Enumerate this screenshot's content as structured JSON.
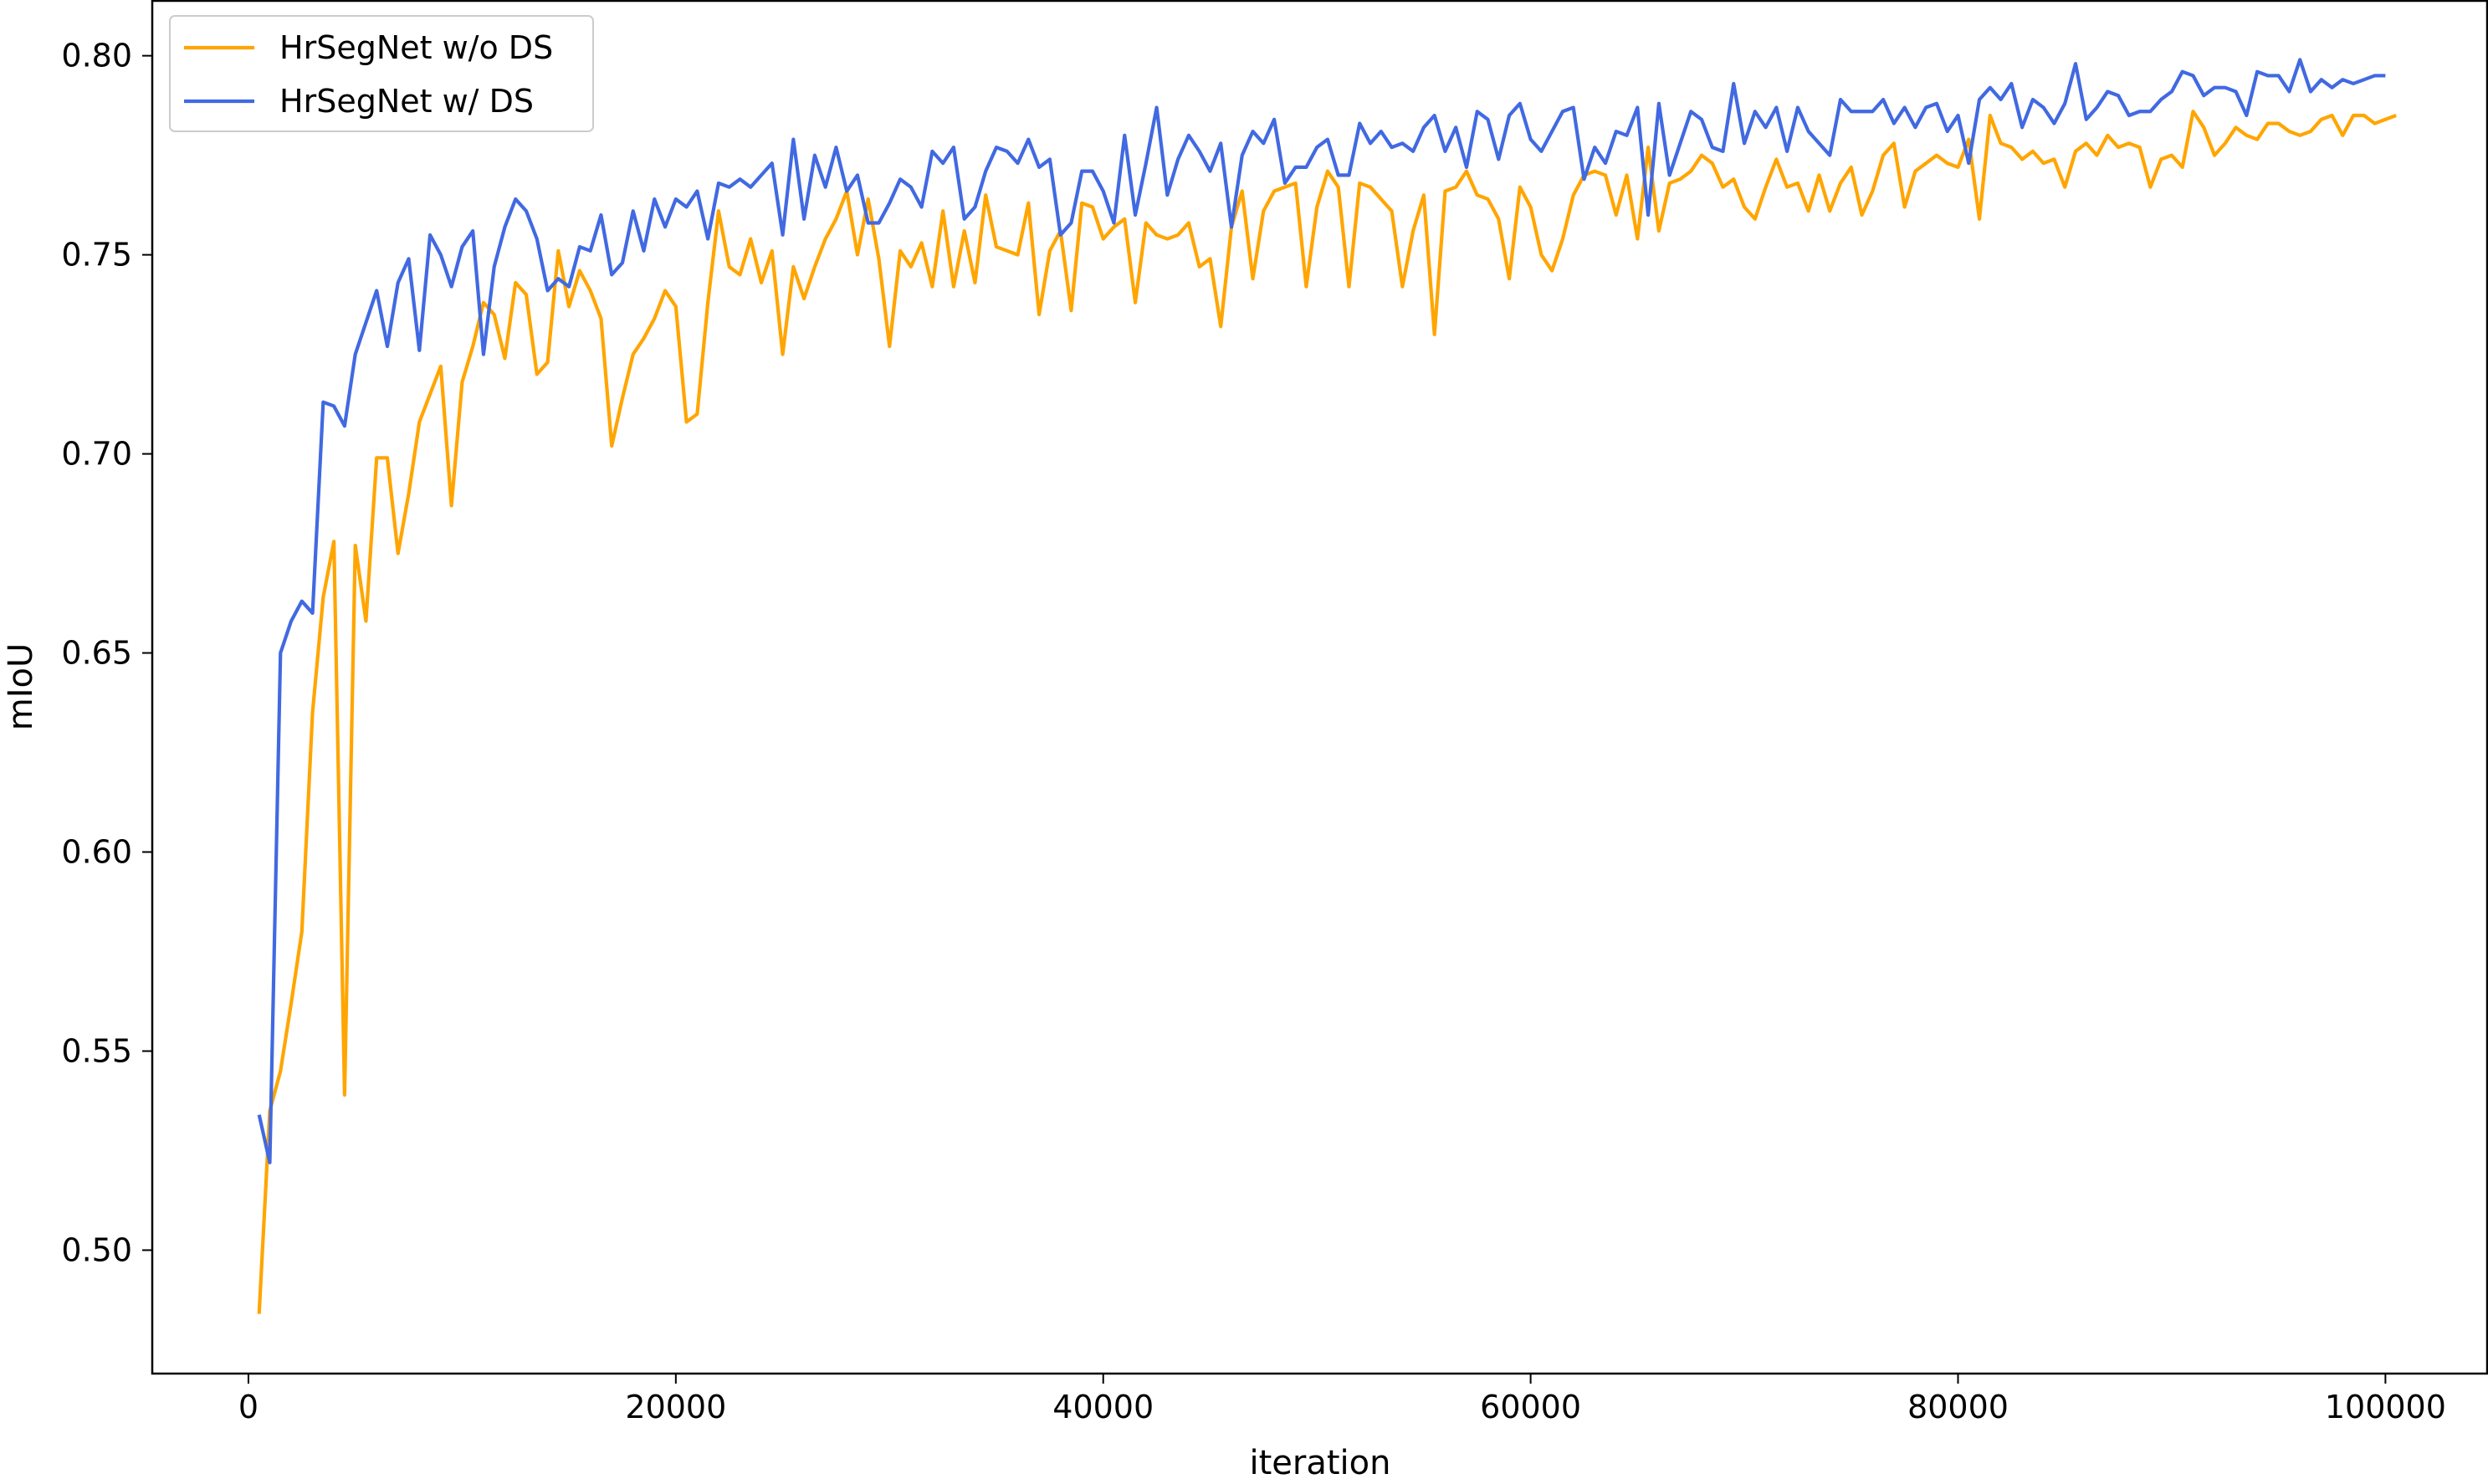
{
  "chart_data": {
    "type": "line",
    "xlabel": "iteration",
    "ylabel": "mIoU",
    "xlim": [
      -4500,
      104800
    ],
    "ylim": [
      0.469,
      0.814
    ],
    "xticks": [
      0,
      20000,
      40000,
      60000,
      80000,
      100000
    ],
    "yticks": [
      0.5,
      0.55,
      0.6,
      0.65,
      0.7,
      0.75,
      0.8
    ],
    "ytick_labels": [
      "0.50",
      "0.55",
      "0.60",
      "0.65",
      "0.70",
      "0.75",
      "0.80"
    ],
    "grid": false,
    "legend_position": "top-left",
    "x_start": 500,
    "x_step": 500,
    "series": [
      {
        "name": "HrSegNet w/o DS",
        "color": "#FFA500",
        "values": [
          0.484,
          0.535,
          0.545,
          0.562,
          0.58,
          0.635,
          0.664,
          0.678,
          0.539,
          0.677,
          0.658,
          0.699,
          0.699,
          0.675,
          0.69,
          0.708,
          0.715,
          0.722,
          0.687,
          0.718,
          0.727,
          0.738,
          0.735,
          0.724,
          0.743,
          0.74,
          0.72,
          0.723,
          0.751,
          0.737,
          0.746,
          0.741,
          0.734,
          0.702,
          0.714,
          0.725,
          0.729,
          0.734,
          0.741,
          0.737,
          0.708,
          0.71,
          0.738,
          0.761,
          0.747,
          0.745,
          0.754,
          0.743,
          0.751,
          0.725,
          0.747,
          0.739,
          0.747,
          0.754,
          0.759,
          0.766,
          0.75,
          0.764,
          0.749,
          0.727,
          0.751,
          0.747,
          0.753,
          0.742,
          0.761,
          0.742,
          0.756,
          0.743,
          0.765,
          0.752,
          0.751,
          0.75,
          0.763,
          0.735,
          0.751,
          0.756,
          0.736,
          0.763,
          0.762,
          0.754,
          0.757,
          0.759,
          0.738,
          0.758,
          0.755,
          0.754,
          0.755,
          0.758,
          0.747,
          0.749,
          0.732,
          0.757,
          0.766,
          0.744,
          0.761,
          0.766,
          0.767,
          0.768,
          0.742,
          0.762,
          0.771,
          0.767,
          0.742,
          0.768,
          0.767,
          0.764,
          0.761,
          0.742,
          0.756,
          0.765,
          0.73,
          0.766,
          0.767,
          0.771,
          0.765,
          0.764,
          0.759,
          0.744,
          0.767,
          0.762,
          0.75,
          0.746,
          0.754,
          0.765,
          0.77,
          0.771,
          0.77,
          0.76,
          0.77,
          0.754,
          0.777,
          0.756,
          0.768,
          0.769,
          0.771,
          0.775,
          0.773,
          0.767,
          0.769,
          0.762,
          0.759,
          0.767,
          0.774,
          0.767,
          0.768,
          0.761,
          0.77,
          0.761,
          0.768,
          0.772,
          0.76,
          0.766,
          0.775,
          0.778,
          0.762,
          0.771,
          0.773,
          0.775,
          0.773,
          0.772,
          0.779,
          0.759,
          0.785,
          0.778,
          0.777,
          0.774,
          0.776,
          0.773,
          0.774,
          0.767,
          0.776,
          0.778,
          0.775,
          0.78,
          0.777,
          0.778,
          0.777,
          0.767,
          0.774,
          0.775,
          0.772,
          0.786,
          0.782,
          0.775,
          0.778,
          0.782,
          0.78,
          0.779,
          0.783,
          0.783,
          0.781,
          0.78,
          0.781,
          0.784,
          0.785,
          0.78,
          0.785,
          0.785,
          0.783,
          0.784,
          0.785
        ]
      },
      {
        "name": "HrSegNet w/ DS",
        "color": "#4169E1",
        "values": [
          0.534,
          0.522,
          0.65,
          0.658,
          0.663,
          0.66,
          0.713,
          0.712,
          0.707,
          0.725,
          0.733,
          0.741,
          0.727,
          0.743,
          0.749,
          0.726,
          0.755,
          0.75,
          0.742,
          0.752,
          0.756,
          0.725,
          0.747,
          0.757,
          0.764,
          0.761,
          0.754,
          0.741,
          0.744,
          0.742,
          0.752,
          0.751,
          0.76,
          0.745,
          0.748,
          0.761,
          0.751,
          0.764,
          0.757,
          0.764,
          0.762,
          0.766,
          0.754,
          0.768,
          0.767,
          0.769,
          0.767,
          0.77,
          0.773,
          0.755,
          0.779,
          0.759,
          0.775,
          0.767,
          0.777,
          0.766,
          0.77,
          0.758,
          0.758,
          0.763,
          0.769,
          0.767,
          0.762,
          0.776,
          0.773,
          0.777,
          0.759,
          0.762,
          0.771,
          0.777,
          0.776,
          0.773,
          0.779,
          0.772,
          0.774,
          0.755,
          0.758,
          0.771,
          0.771,
          0.766,
          0.758,
          0.78,
          0.76,
          0.773,
          0.787,
          0.765,
          0.774,
          0.78,
          0.776,
          0.771,
          0.778,
          0.757,
          0.775,
          0.781,
          0.778,
          0.784,
          0.768,
          0.772,
          0.772,
          0.777,
          0.779,
          0.77,
          0.77,
          0.783,
          0.778,
          0.781,
          0.777,
          0.778,
          0.776,
          0.782,
          0.785,
          0.776,
          0.782,
          0.772,
          0.786,
          0.784,
          0.774,
          0.785,
          0.788,
          0.779,
          0.776,
          0.781,
          0.786,
          0.787,
          0.769,
          0.777,
          0.773,
          0.781,
          0.78,
          0.787,
          0.76,
          0.788,
          0.77,
          0.778,
          0.786,
          0.784,
          0.777,
          0.776,
          0.793,
          0.778,
          0.786,
          0.782,
          0.787,
          0.776,
          0.787,
          0.781,
          0.778,
          0.775,
          0.789,
          0.786,
          0.786,
          0.786,
          0.789,
          0.783,
          0.787,
          0.782,
          0.787,
          0.788,
          0.781,
          0.785,
          0.773,
          0.789,
          0.792,
          0.789,
          0.793,
          0.782,
          0.789,
          0.787,
          0.783,
          0.788,
          0.798,
          0.784,
          0.787,
          0.791,
          0.79,
          0.785,
          0.786,
          0.786,
          0.789,
          0.791,
          0.796,
          0.795,
          0.79,
          0.792,
          0.792,
          0.791,
          0.785,
          0.796,
          0.795,
          0.795,
          0.791,
          0.799,
          0.791,
          0.794,
          0.792,
          0.794,
          0.793,
          0.794,
          0.795,
          0.795
        ]
      }
    ]
  }
}
